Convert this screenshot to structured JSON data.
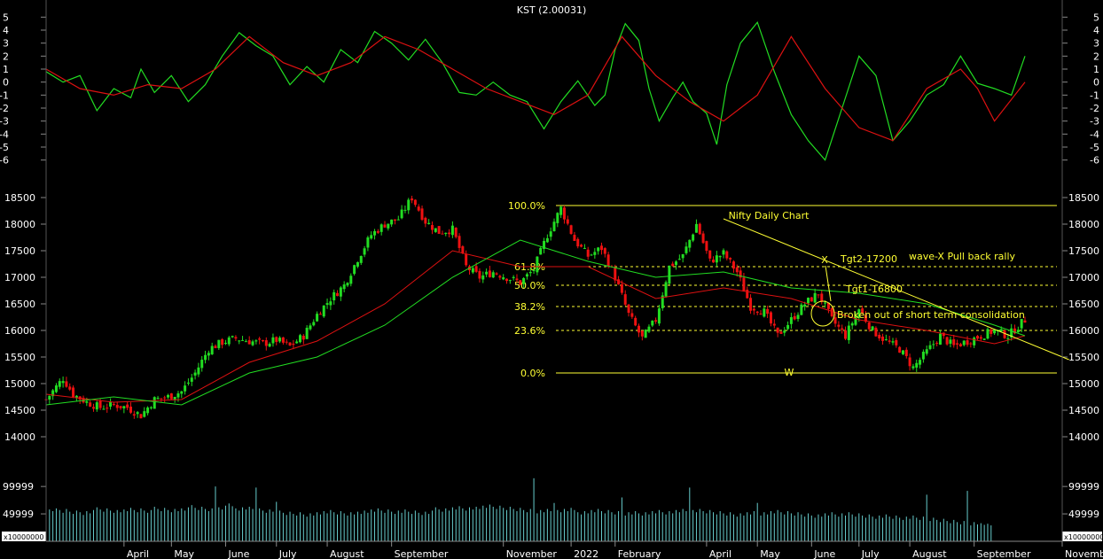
{
  "chart_data": [
    {
      "type": "line",
      "name_label": "KST (2.00031)",
      "ylim": [
        -6.5,
        5.5
      ],
      "yticks": [
        5,
        4,
        3,
        2,
        1,
        0,
        -1,
        -2,
        -3,
        -4,
        -5,
        -6
      ],
      "x_index_range": [
        0,
        300
      ],
      "series": [
        {
          "color": "#22dd22",
          "x": [
            0,
            5,
            10,
            15,
            20,
            25,
            28,
            32,
            37,
            42,
            47,
            52,
            57,
            62,
            67,
            72,
            77,
            82,
            87,
            92,
            97,
            102,
            107,
            112,
            117,
            122,
            127,
            132,
            137,
            142,
            147,
            152,
            157,
            162,
            165,
            168,
            171,
            175,
            178,
            181,
            185,
            188,
            191,
            195,
            198,
            201,
            205,
            210,
            215,
            220,
            225,
            230,
            235,
            240,
            245,
            250,
            255,
            260,
            265,
            270,
            275,
            280,
            285,
            289
          ],
          "values": [
            0.8,
            0.0,
            0.5,
            -2.2,
            -0.5,
            -1.2,
            1.0,
            -0.8,
            0.5,
            -1.5,
            -0.2,
            2.0,
            3.8,
            2.8,
            2.0,
            -0.2,
            1.2,
            0.0,
            2.5,
            1.5,
            3.9,
            3.0,
            1.7,
            3.3,
            1.5,
            -0.8,
            -1.0,
            0.0,
            -1.0,
            -1.5,
            -3.6,
            -1.5,
            0.1,
            -1.8,
            -1.0,
            2.5,
            4.5,
            3.2,
            -0.5,
            -3.0,
            -1.2,
            0.0,
            -1.5,
            -2.4,
            -4.8,
            -0.2,
            3.0,
            4.6,
            0.8,
            -2.5,
            -4.5,
            -6.0,
            -2.0,
            2.0,
            0.5,
            -4.5,
            -3.0,
            -1.0,
            -0.2,
            2.0,
            -0.1,
            -0.5,
            -1.0,
            2.0
          ]
        },
        {
          "color": "#dd1111",
          "x": [
            0,
            10,
            20,
            30,
            40,
            50,
            60,
            70,
            80,
            90,
            100,
            110,
            120,
            130,
            140,
            150,
            160,
            170,
            180,
            190,
            200,
            210,
            220,
            230,
            240,
            250,
            260,
            270,
            275,
            280,
            289
          ],
          "values": [
            1.0,
            -0.5,
            -1.0,
            -0.2,
            -0.5,
            1.0,
            3.5,
            1.5,
            0.5,
            1.5,
            3.5,
            2.5,
            1.0,
            -0.5,
            -1.5,
            -2.5,
            -1.0,
            3.5,
            0.5,
            -1.5,
            -3.0,
            -1.0,
            3.5,
            -0.5,
            -3.5,
            -4.5,
            -0.5,
            1.0,
            -0.5,
            -3.0,
            0.0
          ]
        }
      ]
    },
    {
      "type": "candlestick",
      "title": "Nifty Daily Chart",
      "ylim": [
        13800,
        18800
      ],
      "yticks": [
        18500,
        18000,
        17500,
        17000,
        16500,
        16000,
        15500,
        15000,
        14500,
        14000
      ],
      "x_index_range": [
        0,
        300
      ],
      "close_path": {
        "x": [
          0,
          5,
          8,
          12,
          16,
          20,
          24,
          28,
          32,
          36,
          40,
          44,
          48,
          52,
          56,
          60,
          64,
          68,
          72,
          76,
          80,
          84,
          88,
          92,
          96,
          100,
          104,
          108,
          112,
          116,
          120,
          124,
          128,
          132,
          136,
          140,
          144,
          148,
          152,
          156,
          160,
          164,
          168,
          172,
          176,
          180,
          184,
          188,
          192,
          196,
          200,
          204,
          208,
          212,
          216,
          220,
          224,
          228,
          232,
          236,
          240,
          244,
          248,
          252,
          256,
          260,
          264,
          268,
          272,
          276,
          280,
          284,
          289
        ],
        "values": [
          14700,
          15100,
          14800,
          14650,
          14550,
          14600,
          14550,
          14400,
          14700,
          14750,
          14850,
          15200,
          15650,
          15780,
          15850,
          15800,
          15750,
          15820,
          15700,
          15900,
          16300,
          16600,
          16850,
          17350,
          17800,
          18000,
          18100,
          18500,
          18050,
          17850,
          17900,
          17200,
          17000,
          17100,
          17000,
          16900,
          17150,
          17800,
          18300,
          17700,
          17400,
          17550,
          17000,
          16300,
          15850,
          16200,
          17200,
          17400,
          18000,
          17300,
          17450,
          17100,
          16450,
          16350,
          15900,
          16200,
          16500,
          16700,
          16200,
          15900,
          16400,
          16000,
          15800,
          15650,
          15300,
          15600,
          15900,
          15700,
          15800,
          15900,
          16000,
          15900,
          16200
        ]
      },
      "moving_averages": [
        {
          "color": "#dd1111",
          "x": [
            0,
            20,
            40,
            60,
            80,
            100,
            120,
            140,
            160,
            180,
            200,
            220,
            240,
            260,
            280,
            289
          ],
          "values": [
            14800,
            14650,
            14700,
            15400,
            15800,
            16500,
            17500,
            17200,
            17200,
            16600,
            16800,
            16600,
            16200,
            16000,
            15750,
            15900
          ]
        },
        {
          "color": "#22dd22",
          "x": [
            0,
            20,
            40,
            60,
            80,
            100,
            120,
            140,
            160,
            180,
            200,
            220,
            240,
            260,
            280,
            289
          ],
          "values": [
            14600,
            14750,
            14600,
            15200,
            15500,
            16100,
            17000,
            17700,
            17300,
            17000,
            17100,
            16800,
            16700,
            16500,
            16100,
            15900
          ]
        }
      ],
      "fibonacci": [
        {
          "label": "100.0%",
          "value": 18350
        },
        {
          "label": "61.8%",
          "value": 17200
        },
        {
          "label": "50.0%",
          "value": 16850
        },
        {
          "label": "38.2%",
          "value": 16450
        },
        {
          "label": "23.6%",
          "value": 16000
        },
        {
          "label": "0.0%",
          "value": 15200
        }
      ],
      "annotations": [
        {
          "text": "X"
        },
        {
          "text": "Tgt2-17200"
        },
        {
          "text": "wave-X Pull back rally"
        },
        {
          "text": "Tgt1-16800"
        },
        {
          "text": "Broken out of short term consolidation"
        },
        {
          "text": "W"
        }
      ],
      "trendline": {
        "from": [
          200,
          18100
        ],
        "to": [
          302,
          15450
        ]
      }
    },
    {
      "type": "bar",
      "ylim": [
        0,
        160000
      ],
      "ytick_labels": [
        "99999",
        "49999"
      ],
      "ytick_values": [
        99999,
        49999
      ],
      "scale_label": "x10000000",
      "values": [
        62000,
        58000,
        55000,
        60000,
        57000,
        52000,
        59000,
        54000,
        50000,
        56000,
        53000,
        48000,
        55000,
        51000,
        57000,
        62000,
        58000,
        54000,
        60000,
        56000,
        52000,
        57000,
        53000,
        58000,
        55000,
        61000,
        57000,
        53000,
        60000,
        56000,
        52000,
        57000,
        63000,
        59000,
        55000,
        61000,
        57000,
        53000,
        59000,
        55000,
        60000,
        56000,
        62000,
        66000,
        61000,
        57000,
        63000,
        59000,
        55000,
        60000,
        56000,
        62000,
        58000,
        65000,
        69000,
        64000,
        60000,
        56000,
        62000,
        58000,
        63000,
        59000,
        55000,
        60000,
        56000,
        52000,
        58000,
        54000,
        50000,
        56000,
        52000,
        48000,
        54000,
        50000,
        47000,
        53000,
        49000,
        45000,
        51000,
        47000,
        53000,
        49000,
        55000,
        51000,
        57000,
        53000,
        49000,
        55000,
        51000,
        47000,
        53000,
        49000,
        54000,
        50000,
        56000,
        52000,
        58000,
        54000,
        60000,
        56000,
        52000,
        58000,
        54000,
        50000,
        56000,
        52000,
        58000,
        54000,
        50000,
        56000,
        52000,
        48000,
        54000,
        50000,
        56000,
        62000,
        58000,
        54000,
        60000,
        56000,
        62000,
        58000,
        64000,
        60000,
        56000,
        62000,
        58000,
        63000,
        59000,
        65000,
        61000,
        67000,
        63000,
        59000,
        65000,
        61000,
        57000,
        63000,
        59000,
        55000,
        61000,
        57000,
        53000,
        59000,
        55000,
        51000,
        57000,
        53000,
        59000,
        55000,
        61000,
        57000,
        53000,
        59000,
        55000,
        61000,
        57000,
        53000,
        49000,
        55000,
        51000,
        57000,
        53000,
        59000,
        55000,
        51000,
        57000,
        53000,
        49000,
        55000,
        51000,
        47000,
        53000,
        49000,
        55000,
        51000,
        47000,
        53000,
        49000,
        55000,
        51000,
        57000,
        53000,
        49000,
        55000,
        51000,
        57000,
        53000,
        59000,
        55000,
        51000,
        57000,
        53000,
        59000,
        55000,
        51000,
        57000,
        53000,
        49000,
        55000,
        51000,
        47000,
        53000,
        49000,
        45000,
        51000,
        47000,
        53000,
        49000,
        55000,
        51000,
        47000,
        53000,
        49000,
        55000,
        51000,
        57000,
        53000,
        49000,
        55000,
        51000,
        47000,
        53000,
        49000,
        45000,
        51000,
        47000,
        43000,
        49000,
        45000,
        51000,
        47000,
        53000,
        49000,
        45000,
        51000,
        47000,
        53000,
        49000,
        45000,
        51000,
        47000,
        43000,
        49000,
        45000,
        41000,
        47000,
        43000,
        49000,
        45000,
        41000,
        47000,
        43000,
        39000,
        45000,
        41000,
        47000,
        43000,
        39000,
        45000,
        41000,
        37000,
        43000,
        39000,
        35000,
        41000,
        37000,
        33000,
        39000,
        35000,
        31000,
        37000,
        33000,
        29000,
        35000,
        31000,
        33000,
        30000,
        32000,
        29000
      ],
      "spikes": [
        [
          50,
          100000
        ],
        [
          62,
          98000
        ],
        [
          68,
          72000
        ],
        [
          144,
          115000
        ],
        [
          150,
          70000
        ],
        [
          170,
          80000
        ],
        [
          190,
          98000
        ],
        [
          210,
          70000
        ],
        [
          260,
          85000
        ],
        [
          272,
          92000
        ]
      ]
    }
  ],
  "x_axis": {
    "months": [
      "April",
      "May",
      "June",
      "July",
      "August",
      "September",
      "November",
      "2022",
      "February",
      "April",
      "May",
      "June",
      "July",
      "August",
      "September",
      "November"
    ],
    "month_index": [
      23,
      37,
      53,
      68,
      83,
      102,
      135,
      155,
      168,
      195,
      210,
      226,
      240,
      255,
      274,
      300
    ]
  }
}
